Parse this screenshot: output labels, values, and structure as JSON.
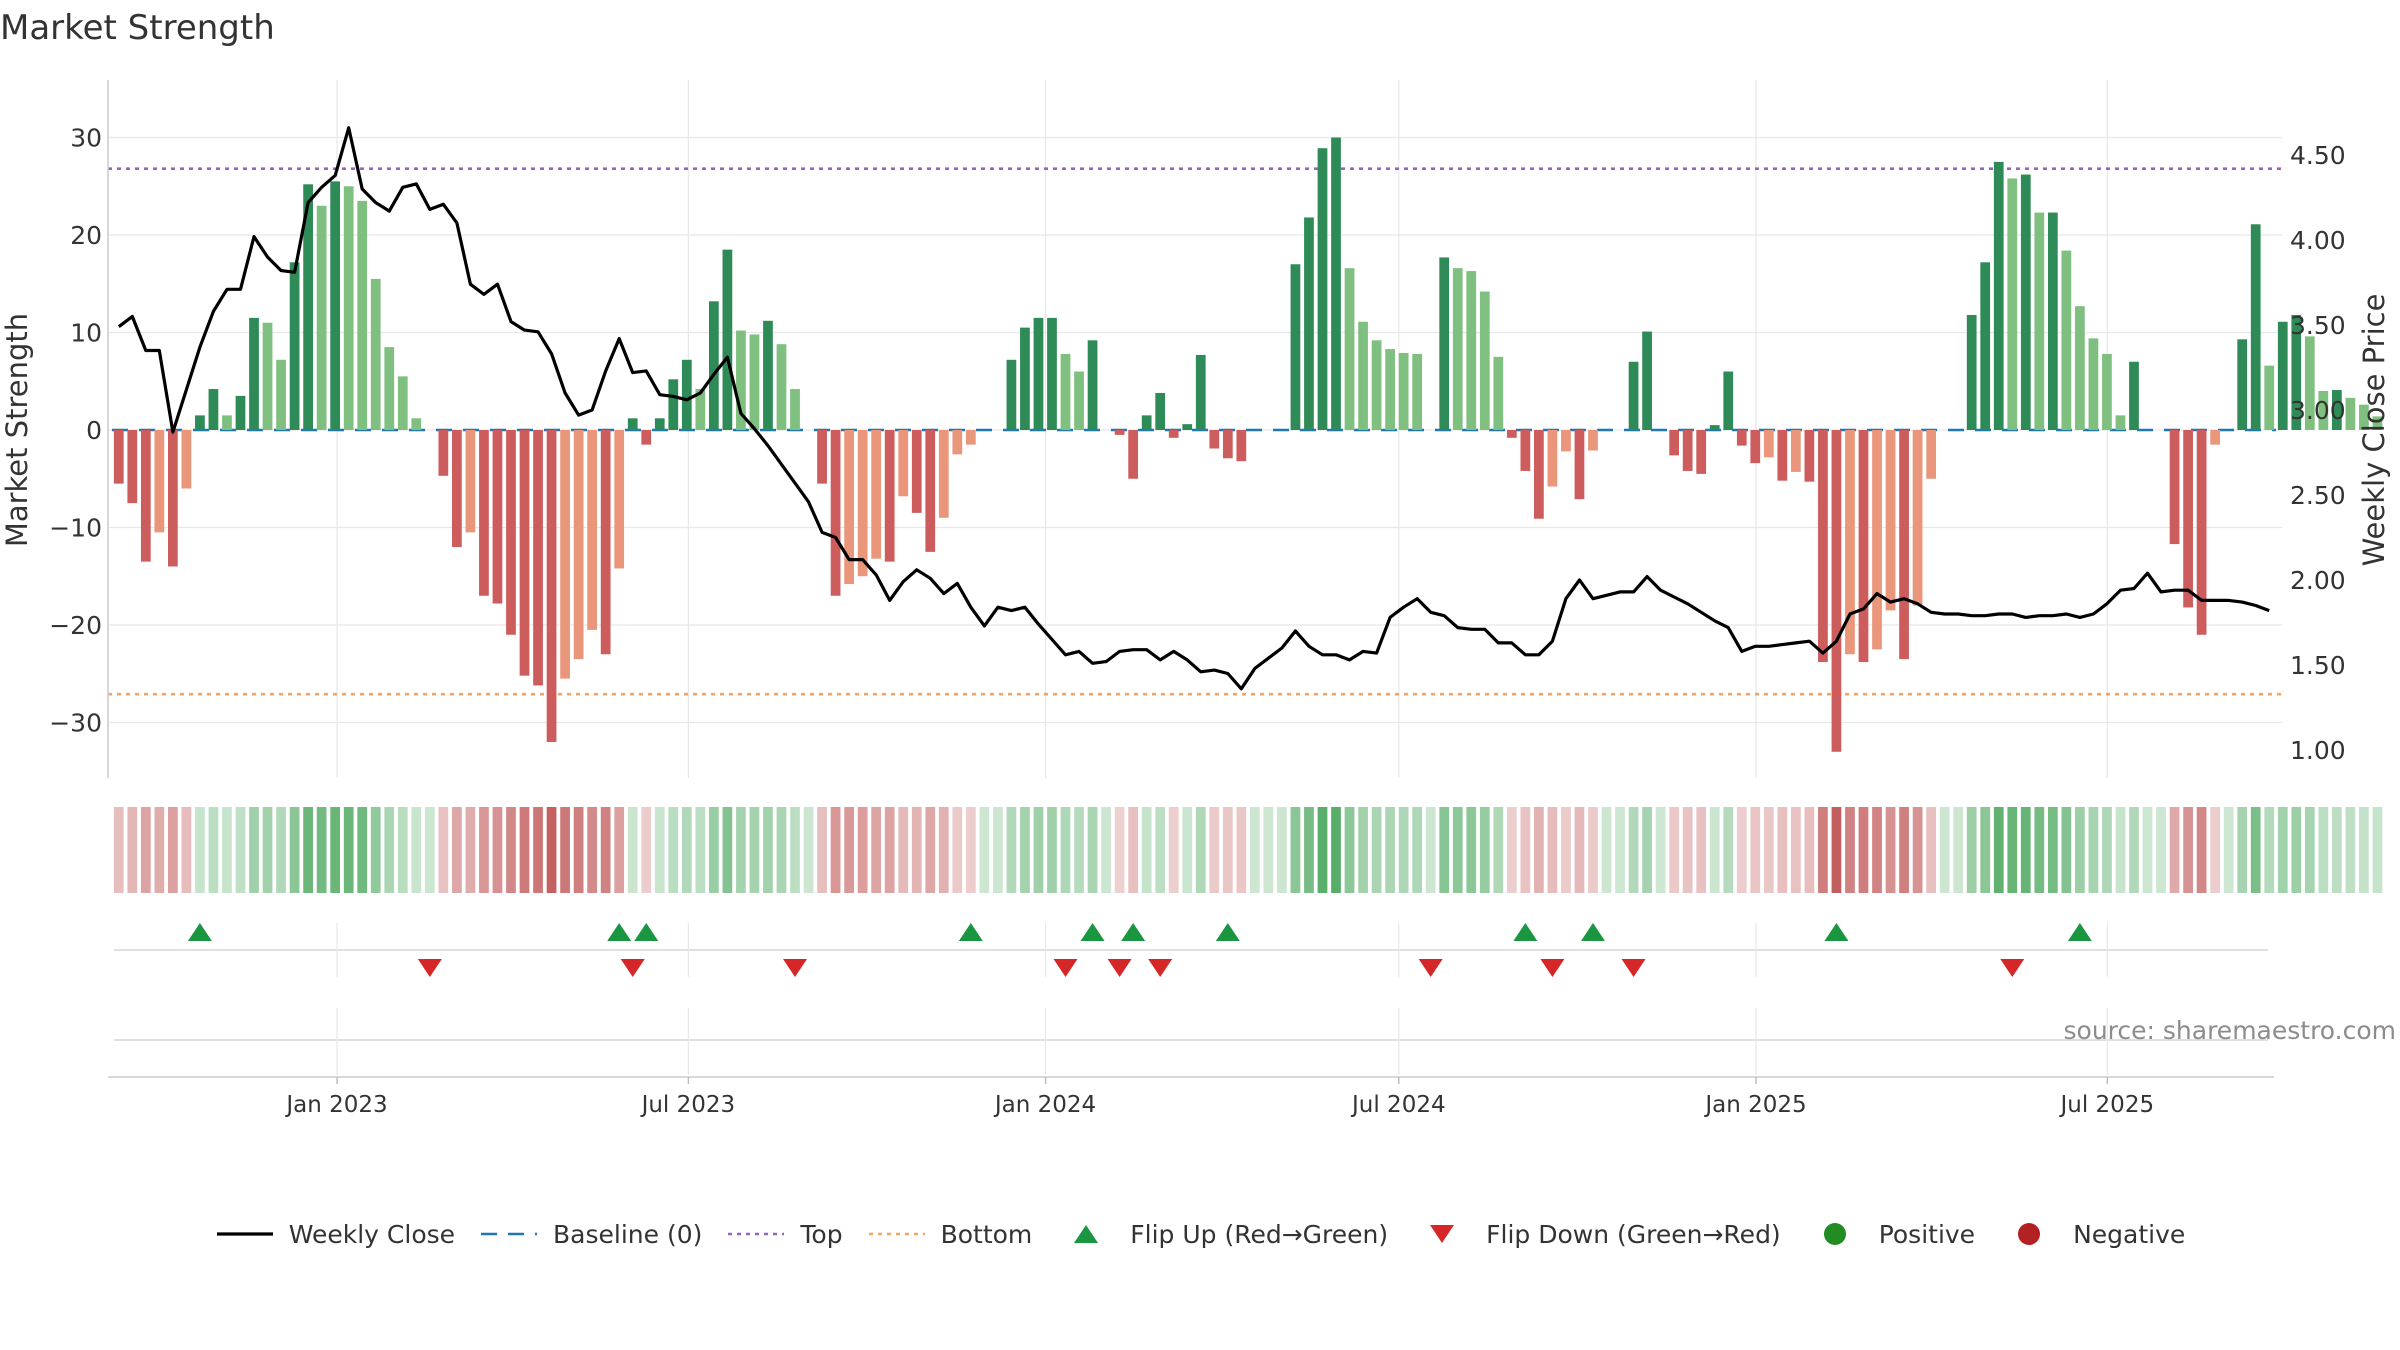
{
  "chart_data": {
    "type": "bar",
    "title": "Market Strength",
    "ylabel": "Market Strength",
    "y2label": "Weekly Close Price",
    "ylim": [
      -35,
      36
    ],
    "y2lim": [
      0.9,
      4.8
    ],
    "yticks": [
      30,
      20,
      10,
      0,
      -10,
      -20,
      -30
    ],
    "ytick_labels": [
      "30",
      "20",
      "10",
      "0",
      "−10",
      "−20",
      "−30"
    ],
    "y2ticks": [
      4.5,
      4.0,
      3.5,
      3.0,
      2.5,
      2.0,
      1.5,
      1.0
    ],
    "y2tick_labels": [
      "4.50",
      "4.00",
      "3.50",
      "3.00",
      "2.50",
      "2.00",
      "1.50",
      "1.00"
    ],
    "x_start": "2022-09-05",
    "x_end": "2025-09-29",
    "x_date_ticks": [
      "2023-01-01",
      "2023-07-01",
      "2024-01-01",
      "2024-07-01",
      "2025-01-01",
      "2025-07-01"
    ],
    "x_tick_labels": [
      "Jan 2023",
      "Jul 2023",
      "Jan 2024",
      "Jul 2024",
      "Jan 2025",
      "Jul 2025"
    ],
    "top_level": 26.8,
    "bottom_level": -27.1,
    "baseline": 0,
    "weeks": 160,
    "strength": [
      -5.5,
      -7.5,
      -13.5,
      -10.5,
      -14,
      -6,
      1.5,
      4.2,
      1.5,
      3.5,
      11.5,
      11,
      7.2,
      17.2,
      25.2,
      23,
      25.5,
      25,
      23.5,
      15.5,
      8.5,
      5.5,
      1.2,
      0,
      -4.7,
      -12,
      -10.5,
      -17,
      -17.8,
      -21,
      -25.2,
      -26.2,
      -32,
      -25.5,
      -23.5,
      -20.5,
      -23,
      -14.2,
      1.2,
      -1.5,
      1.2,
      5.2,
      7.2,
      4.2,
      13.2,
      18.5,
      10.2,
      9.8,
      11.2,
      8.8,
      4.2,
      0,
      -5.5,
      -17,
      -15.8,
      -15,
      -13.2,
      -13.5,
      -6.8,
      -8.5,
      -12.5,
      -9,
      -2.5,
      -1.5,
      0,
      0,
      7.2,
      10.5,
      11.5,
      11.5,
      7.8,
      6,
      9.2,
      0,
      -0.5,
      -5,
      1.5,
      3.8,
      -0.8,
      0.6,
      7.7,
      -1.9,
      -2.9,
      -3.2,
      0,
      0,
      0,
      17,
      21.8,
      28.9,
      30,
      16.6,
      11.1,
      9.2,
      8.3,
      7.9,
      7.8,
      0,
      17.7,
      16.6,
      16.3,
      14.2,
      7.5,
      -0.8,
      -4.2,
      -9.1,
      -5.8,
      -2.2,
      -7.1,
      -2.1,
      0,
      0,
      7,
      10.1,
      0,
      -2.6,
      -4.2,
      -4.5,
      0.5,
      6,
      -1.6,
      -3.4,
      -2.8,
      -5.2,
      -4.3,
      -5.3,
      -23.8,
      -33,
      -23,
      -23.8,
      -22.5,
      -18.5,
      -23.5,
      -18,
      -5,
      0,
      0,
      11.8,
      17.2,
      27.5,
      25.8,
      26.2,
      22.3,
      22.3,
      18.4,
      12.7,
      9.4,
      7.8,
      1.5,
      7,
      0,
      0,
      -11.7,
      -18.2,
      -21,
      -1.5,
      0,
      9.3,
      21.1,
      6.6,
      11.1,
      11.8,
      9.6,
      4,
      4.1,
      3.3,
      2.6,
      1.4
    ],
    "weekly_close": [
      3.49,
      3.55,
      3.35,
      3.35,
      2.87,
      3.12,
      3.37,
      3.58,
      3.71,
      3.71,
      4.02,
      3.9,
      3.82,
      3.81,
      4.22,
      4.31,
      4.38,
      4.66,
      4.3,
      4.22,
      4.17,
      4.31,
      4.33,
      4.18,
      4.21,
      4.1,
      3.74,
      3.68,
      3.74,
      3.52,
      3.47,
      3.46,
      3.33,
      3.1,
      2.97,
      3.0,
      3.23,
      3.42,
      3.22,
      3.23,
      3.09,
      3.08,
      3.06,
      3.1,
      3.21,
      3.31,
      2.98,
      2.89,
      2.79,
      2.68,
      2.57,
      2.46,
      2.28,
      2.25,
      2.12,
      2.12,
      2.03,
      1.88,
      1.99,
      2.06,
      2.01,
      1.92,
      1.98,
      1.84,
      1.73,
      1.84,
      1.82,
      1.84,
      1.74,
      1.65,
      1.56,
      1.58,
      1.51,
      1.52,
      1.58,
      1.59,
      1.59,
      1.53,
      1.58,
      1.53,
      1.46,
      1.47,
      1.45,
      1.36,
      1.48,
      1.54,
      1.6,
      1.7,
      1.61,
      1.56,
      1.56,
      1.53,
      1.58,
      1.57,
      1.78,
      1.84,
      1.89,
      1.81,
      1.79,
      1.72,
      1.71,
      1.71,
      1.63,
      1.63,
      1.56,
      1.56,
      1.64,
      1.89,
      2.0,
      1.89,
      1.91,
      1.93,
      1.93,
      2.02,
      1.94,
      1.9,
      1.86,
      1.81,
      1.76,
      1.72,
      1.58,
      1.61,
      1.61,
      1.62,
      1.63,
      1.64,
      1.57,
      1.64,
      1.8,
      1.83,
      1.92,
      1.87,
      1.89,
      1.86,
      1.81,
      1.8,
      1.8,
      1.79,
      1.79,
      1.8,
      1.8,
      1.78,
      1.79,
      1.79,
      1.8,
      1.78,
      1.8,
      1.86,
      1.94,
      1.95,
      2.04,
      1.93,
      1.94,
      1.94,
      1.88,
      1.88,
      1.88,
      1.87,
      1.85,
      1.82
    ],
    "flip_up_weeks": [
      6,
      37,
      39,
      63,
      72,
      75,
      82,
      104,
      109,
      127,
      145
    ],
    "flip_down_weeks": [
      23,
      38,
      50,
      70,
      74,
      77,
      97,
      106,
      112,
      140
    ],
    "legend": [
      {
        "label": "Weekly Close",
        "kind": "line",
        "color": "#000000"
      },
      {
        "label": "Baseline (0)",
        "kind": "dash",
        "color": "#1f77b4"
      },
      {
        "label": "Top",
        "kind": "dot",
        "color": "#9467bd"
      },
      {
        "label": "Bottom",
        "kind": "dot",
        "color": "#f4a460"
      },
      {
        "label": "Flip Up (Red→Green)",
        "kind": "tri-up",
        "color": "#1a9641"
      },
      {
        "label": "Flip Down (Green→Red)",
        "kind": "tri-down",
        "color": "#d62728"
      },
      {
        "label": "Positive",
        "kind": "circle",
        "color": "#228b22"
      },
      {
        "label": "Negative",
        "kind": "circle",
        "color": "#b22222"
      }
    ]
  },
  "colors": {
    "pos_strong": "#2e8b57",
    "pos_light": "#7fbf7f",
    "neg_strong": "#cd5c5c",
    "neg_light": "#e9967a",
    "line": "#000000",
    "baseline": "#1f77b4",
    "top": "#9467bd",
    "bottom": "#f4a460",
    "grid": "#e8e8e8"
  },
  "source": "source: sharemaestro.com"
}
